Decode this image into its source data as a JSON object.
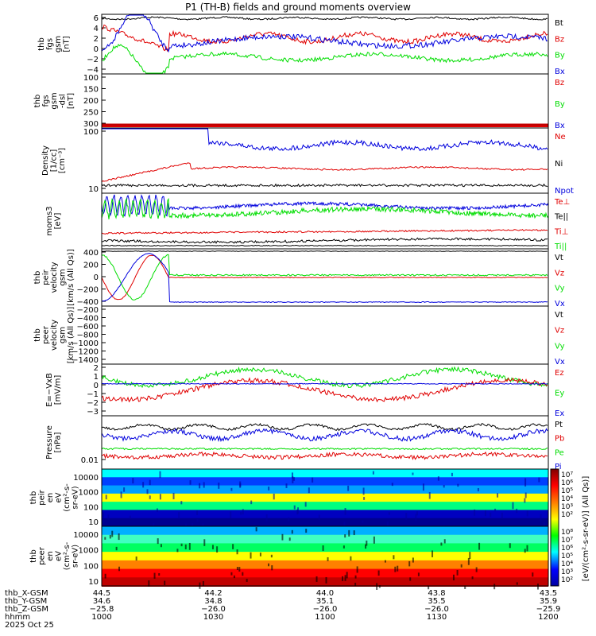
{
  "title": "P1 (TH-B) fields and ground moments overview",
  "date": "2025 Oct 25",
  "colors": {
    "black": "#000000",
    "red": "#e00000",
    "green": "#00dd00",
    "blue": "#0000dd"
  },
  "chart_data": [
    {
      "type": "line",
      "ylabel": [
        "thb",
        "fgs",
        "gsm",
        "[nT]"
      ],
      "ylim": [
        -5,
        6
      ],
      "yticks": [
        "6",
        "4",
        "2",
        "0",
        "−2",
        "−4"
      ],
      "legend": [
        {
          "label": "Bt",
          "color": "black"
        },
        {
          "label": "Bz",
          "color": "red"
        },
        {
          "label": "By",
          "color": "green"
        },
        {
          "label": "Bx",
          "color": "blue"
        }
      ]
    },
    {
      "type": "line",
      "ylabel": [
        "thb",
        "fgs",
        "gsm",
        "-dsl",
        "[nT]"
      ],
      "ylim": [
        330,
        100
      ],
      "yticks": [
        "100",
        "150",
        "200",
        "250",
        "300"
      ],
      "legend": [
        {
          "label": "Bz",
          "color": "red"
        },
        {
          "label": "By",
          "color": "green"
        },
        {
          "label": "Bx",
          "color": "blue"
        }
      ]
    },
    {
      "type": "line",
      "ylabel": [
        "Density",
        "[1/cc]",
        "[cm⁻³]"
      ],
      "yscale": "log",
      "yticks": [
        "100",
        "10"
      ],
      "legend": [
        {
          "label": "Ne",
          "color": "red"
        },
        {
          "label": "Ni",
          "color": "black"
        },
        {
          "label": "Npot",
          "color": "blue"
        }
      ]
    },
    {
      "type": "line",
      "ylabel": [
        "moms3",
        "[eV]"
      ],
      "yscale": "log",
      "yticks": [],
      "legend": [
        {
          "label": "Te⊥",
          "color": "red"
        },
        {
          "label": "Te||",
          "color": "black"
        },
        {
          "label": "Ti⊥",
          "color": "red"
        },
        {
          "label": "Ti||",
          "color": "green"
        }
      ]
    },
    {
      "type": "line",
      "ylabel": [
        "thb",
        "peir",
        "velocity",
        "gsm",
        "[km/s (All Qs)]"
      ],
      "ylim": [
        -400,
        400
      ],
      "yticks": [
        "400",
        "200",
        "0",
        "−200",
        "−400"
      ],
      "legend": [
        {
          "label": "Vt",
          "color": "black"
        },
        {
          "label": "Vz",
          "color": "red"
        },
        {
          "label": "Vy",
          "color": "green"
        },
        {
          "label": "Vx",
          "color": "blue"
        }
      ]
    },
    {
      "type": "line",
      "ylabel": [
        "thb",
        "peer",
        "velocity",
        "gsm",
        "[km/s (All Qs)]"
      ],
      "ylim": [
        -1500,
        -120
      ],
      "yticks": [
        "−200",
        "−400",
        "−600",
        "−800",
        "−1000",
        "−1200",
        "−1400"
      ],
      "legend": [
        {
          "label": "Vt",
          "color": "black"
        },
        {
          "label": "Vz",
          "color": "red"
        },
        {
          "label": "Vy",
          "color": "green"
        },
        {
          "label": "Vx",
          "color": "blue"
        }
      ]
    },
    {
      "type": "line",
      "ylabel": [
        "E=−VxB",
        "[mV/m]"
      ],
      "ylim": [
        -3.3,
        2.4
      ],
      "yticks": [
        "2",
        "1",
        "0",
        "−1",
        "−2",
        "−3"
      ],
      "legend": [
        {
          "label": "Ez",
          "color": "red"
        },
        {
          "label": "Ey",
          "color": "green"
        },
        {
          "label": "Ex",
          "color": "blue"
        }
      ]
    },
    {
      "type": "line",
      "ylabel": [
        "Pressure",
        "[nPa]"
      ],
      "yscale": "log",
      "yticks": [
        "0.01"
      ],
      "legend": [
        {
          "label": "Pt",
          "color": "black"
        },
        {
          "label": "Pb",
          "color": "red"
        },
        {
          "label": "Pe",
          "color": "green"
        },
        {
          "label": "Pi",
          "color": "blue"
        }
      ]
    },
    {
      "type": "heatmap",
      "ylabel": [
        "thb",
        "peir",
        "en",
        "eV",
        "(cm²-s-",
        "sr-eV)"
      ],
      "yscale": "log",
      "yticks": [
        "10000",
        "1000",
        "100",
        "10"
      ]
    },
    {
      "type": "heatmap",
      "ylabel": [
        "thb",
        "peer",
        "en",
        "eV",
        "(cm²-s-",
        "sr-eV)"
      ],
      "yscale": "log",
      "yticks": [
        "10000",
        "1000",
        "100",
        "10"
      ]
    }
  ],
  "colorbar": {
    "label": "[eV/(cm²-s-sr-eV)] (All Qs)]",
    "ticks_top": [
      "10⁷",
      "10⁶",
      "10⁵",
      "10⁴",
      "10³",
      "10²"
    ],
    "ticks_bottom": [
      "10⁸",
      "10⁷",
      "10⁶",
      "10⁵",
      "10⁴",
      "10³",
      "10²"
    ]
  },
  "xaxis": {
    "rows": [
      {
        "label": "thb_X-GSM",
        "values": [
          "44.5",
          "44.2",
          "44.0",
          "43.8",
          "43.5"
        ]
      },
      {
        "label": "thb_Y-GSM",
        "values": [
          "34.6",
          "34.8",
          "35.1",
          "35.5",
          "35.9"
        ]
      },
      {
        "label": "thb_Z-GSM",
        "values": [
          "−25.8",
          "−26.0",
          "−26.0",
          "−26.0",
          "−25.9"
        ]
      },
      {
        "label": "hhmm",
        "values": [
          "1000",
          "1030",
          "1100",
          "1130",
          "1200"
        ]
      }
    ]
  }
}
